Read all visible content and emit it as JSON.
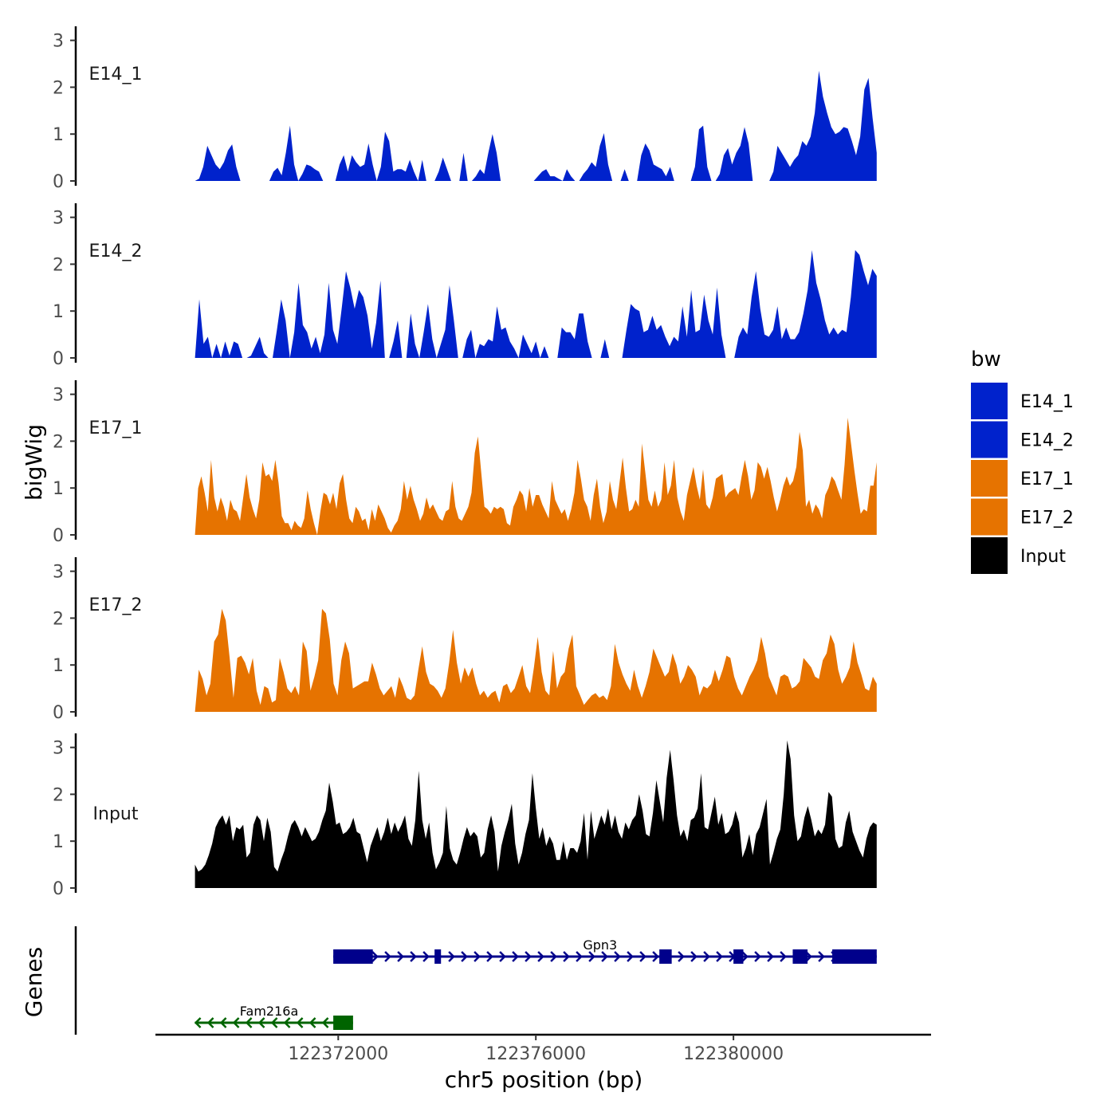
{
  "chart_data": {
    "type": "area",
    "chromosome": "chr5",
    "x_range": [
      122369100,
      122382900
    ],
    "xlim": [
      122368300,
      122384000
    ],
    "x_ticks": [
      122372000,
      122376000,
      122380000
    ],
    "x_tick_labels": [
      "122372000",
      "122376000",
      "122380000"
    ],
    "xlabel": "chr5 position (bp)",
    "ylabel": "bigWig",
    "genes_label": "Genes",
    "ylim": [
      0,
      3.3
    ],
    "y_ticks": [
      0,
      1,
      2,
      3
    ],
    "y_tick_labels": [
      "0",
      "1",
      "2",
      "3"
    ],
    "legend": {
      "title": "bw",
      "entries": [
        {
          "label": "E14_1",
          "color": "#0022cc"
        },
        {
          "label": "E14_2",
          "color": "#0022cc"
        },
        {
          "label": "E17_1",
          "color": "#e67300"
        },
        {
          "label": "E17_2",
          "color": "#e67300"
        },
        {
          "label": "Input",
          "color": "#000000"
        }
      ]
    },
    "tracks": [
      {
        "name": "E14_1",
        "color": "#0022cc",
        "values": [
          0,
          0.05,
          0.3,
          0.75,
          0.55,
          0.35,
          0.25,
          0.4,
          0.65,
          0.78,
          0.3,
          0,
          0,
          0,
          0,
          0,
          0,
          0,
          0,
          0.2,
          0.28,
          0.12,
          0.6,
          1.18,
          0.35,
          0,
          0.15,
          0.35,
          0.32,
          0.25,
          0.2,
          0,
          0,
          0,
          0,
          0.35,
          0.55,
          0.2,
          0.55,
          0.4,
          0.3,
          0.35,
          0.8,
          0.35,
          0,
          0.3,
          1.05,
          0.85,
          0.2,
          0.25,
          0.25,
          0.2,
          0.45,
          0.2,
          0,
          0.45,
          0,
          0,
          0,
          0.2,
          0.5,
          0.25,
          0,
          0,
          0,
          0.6,
          0,
          0,
          0.1,
          0.25,
          0.15,
          0.6,
          1.0,
          0.6,
          0,
          0,
          0,
          0,
          0,
          0,
          0,
          0,
          0,
          0.1,
          0.2,
          0.25,
          0.1,
          0.1,
          0.05,
          0,
          0.25,
          0.1,
          0,
          0,
          0.15,
          0.25,
          0.4,
          0.3,
          0.75,
          1.02,
          0.35,
          0,
          0,
          0,
          0.25,
          0,
          0,
          0,
          0.55,
          0.8,
          0.65,
          0.35,
          0.3,
          0.25,
          0.1,
          0.3,
          0,
          0,
          0,
          0,
          0,
          0.3,
          1.1,
          1.18,
          0.3,
          0,
          0,
          0.15,
          0.55,
          0.7,
          0.35,
          0.6,
          0.75,
          1.15,
          0.8,
          0,
          0,
          0,
          0,
          0,
          0.2,
          0.75,
          0.6,
          0.45,
          0.3,
          0.45,
          0.55,
          0.85,
          0.75,
          0.95,
          1.45,
          2.35,
          1.8,
          1.45,
          1.15,
          1.0,
          1.05,
          1.15,
          1.12,
          0.85,
          0.55,
          0.95,
          1.95,
          2.2,
          1.35,
          0.6
        ],
        "label_y": 2.3
      },
      {
        "name": "E14_2",
        "color": "#0022cc",
        "values": [
          0,
          1.25,
          0.3,
          0.45,
          0,
          0.3,
          0,
          0.35,
          0.05,
          0.35,
          0.3,
          0,
          0,
          0.05,
          0.25,
          0.45,
          0.1,
          0,
          0,
          0.6,
          1.25,
          0.8,
          0,
          0.55,
          1.6,
          0.7,
          0.55,
          0.2,
          0.45,
          0.1,
          0.5,
          1.6,
          0.6,
          0.3,
          1.05,
          1.85,
          1.5,
          1.05,
          1.45,
          1.3,
          0.9,
          0.2,
          0.75,
          1.65,
          0,
          0,
          0.35,
          0.8,
          0,
          0,
          0.95,
          0.3,
          0,
          0.55,
          1.15,
          0.4,
          0,
          0.3,
          0.6,
          1.55,
          0.8,
          0,
          0,
          0.4,
          0.6,
          0,
          0.3,
          0.25,
          0.4,
          0.35,
          1.1,
          0.6,
          0.65,
          0.35,
          0.2,
          0,
          0.5,
          0.3,
          0.1,
          0.35,
          0,
          0.25,
          0,
          0,
          0,
          0.65,
          0.55,
          0.55,
          0.4,
          0.95,
          0.95,
          0.35,
          0,
          0,
          0,
          0.4,
          0,
          0,
          0,
          0,
          0.6,
          1.15,
          1.05,
          1.0,
          0.55,
          0.6,
          0.9,
          0.6,
          0.7,
          0.45,
          0.25,
          0.45,
          0.35,
          1.1,
          0.45,
          1.45,
          0.55,
          0.6,
          1.35,
          0.8,
          0.5,
          1.5,
          0.5,
          0,
          0,
          0,
          0.45,
          0.65,
          0.5,
          1.3,
          1.85,
          1.05,
          0.5,
          0.45,
          0.6,
          1.1,
          0.4,
          0.65,
          0.4,
          0.4,
          0.55,
          0.95,
          1.45,
          2.3,
          1.6,
          1.25,
          0.8,
          0.5,
          0.65,
          0.5,
          0.6,
          0.55,
          1.3,
          2.3,
          2.2,
          1.85,
          1.55,
          1.9,
          1.75
        ],
        "label_y": 2.3
      },
      {
        "name": "E17_1",
        "color": "#e67300",
        "values": [
          0,
          1.0,
          1.25,
          0.9,
          0.5,
          1.6,
          0.8,
          0.5,
          0.8,
          0.6,
          0.3,
          0.75,
          0.55,
          0.5,
          0.3,
          0.8,
          1.3,
          0.8,
          0.55,
          0.35,
          0.75,
          1.55,
          1.25,
          1.3,
          1.15,
          1.6,
          1.1,
          0.4,
          0.25,
          0.25,
          0.1,
          0.3,
          0.2,
          0.15,
          0.35,
          0.95,
          0.55,
          0.25,
          0,
          0.5,
          0.9,
          0.85,
          0.65,
          0.9,
          0.55,
          1.1,
          1.3,
          0.75,
          0.35,
          0.25,
          0.6,
          0.5,
          0.3,
          0.35,
          0.1,
          0.55,
          0.3,
          0.65,
          0.5,
          0.35,
          0.15,
          0.05,
          0.2,
          0.3,
          0.55,
          1.15,
          0.75,
          1.05,
          0.75,
          0.55,
          0.3,
          0.45,
          0.8,
          0.55,
          0.65,
          0.5,
          0.35,
          0.3,
          0.5,
          0.55,
          1.15,
          0.6,
          0.35,
          0.3,
          0.45,
          0.6,
          0.9,
          1.75,
          2.1,
          1.35,
          0.6,
          0.55,
          0.45,
          0.6,
          0.55,
          0.6,
          0.55,
          0.25,
          0.2,
          0.6,
          0.75,
          0.95,
          0.85,
          0.5,
          1.0,
          0.6,
          0.85,
          0.85,
          0.65,
          0.5,
          0.35,
          1.15,
          0.75,
          0.6,
          0.45,
          0.55,
          0.3,
          0.55,
          0.9,
          1.6,
          1.2,
          0.75,
          0.6,
          0.3,
          0.85,
          1.2,
          0.6,
          0.25,
          0.5,
          1.15,
          0.75,
          0.55,
          1.1,
          1.65,
          1.0,
          0.5,
          0.55,
          0.75,
          0.6,
          1.95,
          1.35,
          0.75,
          0.6,
          0.95,
          0.6,
          0.75,
          1.55,
          0.85,
          1.05,
          1.6,
          0.8,
          0.5,
          0.3,
          0.85,
          1.15,
          1.45,
          1.05,
          0.75,
          1.4,
          0.65,
          0.55,
          0.8,
          1.2,
          1.25,
          1.3,
          0.8,
          0.9,
          0.95,
          1.0,
          0.85,
          1.25,
          1.6,
          1.25,
          0.75,
          0.95,
          1.55,
          1.45,
          1.2,
          1.45,
          1.15,
          0.8,
          0.5,
          0.75,
          1.05,
          1.25,
          1.05,
          1.15,
          1.45,
          2.2,
          1.8,
          0.6,
          0.75,
          0.45,
          0.65,
          0.55,
          0.35,
          0.85,
          1.0,
          1.25,
          1.15,
          0.95,
          0.75,
          1.5,
          2.5,
          1.95,
          1.4,
          0.9,
          0.45,
          0.55,
          0.5,
          1.05,
          1.05,
          1.55
        ],
        "label_y": 2.3
      },
      {
        "name": "E17_2",
        "color": "#e67300",
        "values": [
          0,
          0.9,
          0.7,
          0.35,
          0.6,
          1.5,
          1.65,
          2.2,
          1.95,
          1.15,
          0.3,
          1.15,
          1.2,
          1.05,
          0.8,
          1.15,
          0.45,
          0.15,
          0.55,
          0.5,
          0.2,
          0.25,
          1.15,
          0.85,
          0.5,
          0.4,
          0.55,
          0.35,
          1.5,
          1.3,
          0.45,
          0.75,
          1.1,
          2.2,
          2.1,
          1.55,
          0.6,
          0.35,
          1.1,
          1.5,
          1.25,
          0.5,
          0.55,
          0.6,
          0.65,
          0.65,
          1.05,
          0.8,
          0.5,
          0.35,
          0.45,
          0.55,
          0.3,
          0.75,
          0.55,
          0.3,
          0.25,
          0.35,
          0.9,
          1.4,
          0.85,
          0.6,
          0.55,
          0.45,
          0.3,
          0.5,
          1.05,
          1.75,
          1.05,
          0.6,
          0.95,
          0.75,
          0.95,
          0.6,
          0.35,
          0.45,
          0.3,
          0.4,
          0.45,
          0.2,
          0.55,
          0.6,
          0.4,
          0.5,
          0.75,
          1.0,
          0.55,
          0.4,
          0.95,
          1.6,
          0.85,
          0.45,
          0.35,
          1.3,
          0.5,
          0.75,
          0.85,
          1.35,
          1.65,
          0.55,
          0.35,
          0.15,
          0.25,
          0.35,
          0.4,
          0.3,
          0.35,
          0.25,
          0.55,
          1.45,
          1.05,
          0.8,
          0.6,
          0.45,
          0.9,
          0.55,
          0.3,
          0.55,
          0.85,
          1.35,
          1.15,
          0.95,
          0.75,
          0.85,
          1.25,
          1.0,
          0.6,
          0.75,
          1.0,
          0.9,
          0.75,
          0.35,
          0.55,
          0.5,
          0.6,
          0.9,
          0.65,
          0.9,
          1.2,
          1.15,
          0.75,
          0.5,
          0.35,
          0.55,
          0.75,
          0.9,
          1.1,
          1.6,
          1.25,
          0.75,
          0.55,
          0.35,
          0.75,
          0.8,
          0.75,
          0.5,
          0.55,
          0.65,
          1.15,
          1.05,
          0.95,
          0.75,
          0.7,
          1.1,
          1.25,
          1.65,
          1.45,
          0.9,
          0.6,
          0.75,
          0.95,
          1.5,
          1.05,
          0.8,
          0.5,
          0.45,
          0.75,
          0.6
        ],
        "label_y": 2.3
      },
      {
        "name": "Input",
        "color": "#000000",
        "values": [
          0.5,
          0.35,
          0.4,
          0.5,
          0.7,
          0.95,
          1.3,
          1.45,
          1.55,
          1.35,
          1.55,
          1.0,
          1.3,
          1.25,
          1.35,
          0.65,
          0.75,
          1.35,
          1.55,
          1.45,
          1.0,
          1.5,
          1.2,
          0.45,
          0.35,
          0.6,
          0.8,
          1.1,
          1.35,
          1.45,
          1.3,
          1.1,
          1.3,
          1.15,
          1.0,
          1.05,
          1.2,
          1.45,
          1.65,
          2.25,
          1.85,
          1.35,
          1.4,
          1.15,
          1.2,
          1.3,
          1.5,
          1.2,
          1.15,
          0.85,
          0.55,
          0.9,
          1.1,
          1.3,
          1.0,
          1.2,
          1.5,
          1.15,
          1.4,
          1.2,
          1.35,
          1.55,
          1.05,
          0.9,
          1.45,
          2.5,
          1.45,
          1.05,
          1.4,
          0.75,
          0.4,
          0.55,
          0.75,
          1.75,
          0.85,
          0.6,
          0.5,
          0.75,
          1.05,
          1.3,
          1.1,
          1.2,
          1.1,
          0.65,
          0.75,
          1.25,
          1.55,
          1.2,
          0.35,
          0.9,
          1.2,
          1.45,
          1.8,
          0.95,
          0.5,
          0.75,
          1.15,
          1.45,
          2.45,
          1.7,
          1.05,
          1.3,
          0.9,
          1.1,
          0.95,
          0.6,
          0.6,
          1.0,
          0.6,
          0.85,
          0.85,
          0.75,
          1.0,
          1.6,
          0.6,
          1.65,
          1.05,
          1.3,
          1.55,
          1.35,
          1.7,
          1.25,
          1.55,
          1.2,
          1.05,
          1.4,
          1.25,
          1.45,
          1.55,
          2.0,
          1.65,
          1.15,
          1.1,
          1.6,
          2.3,
          1.85,
          1.4,
          2.35,
          2.95,
          2.3,
          1.55,
          1.1,
          1.25,
          1.0,
          1.45,
          1.5,
          1.7,
          2.45,
          1.3,
          1.25,
          1.6,
          1.95,
          1.35,
          1.6,
          1.15,
          1.2,
          1.35,
          1.65,
          1.4,
          0.65,
          0.85,
          1.15,
          0.7,
          1.15,
          1.3,
          1.6,
          1.9,
          0.5,
          0.75,
          1.05,
          1.25,
          2.0,
          3.15,
          2.75,
          1.55,
          1.0,
          1.1,
          1.5,
          1.75,
          1.45,
          1.1,
          1.25,
          1.15,
          1.35,
          2.05,
          1.95,
          1.05,
          0.85,
          0.9,
          1.4,
          1.65,
          1.2,
          1.0,
          0.8,
          0.65,
          1.05,
          1.3,
          1.4,
          1.35
        ],
        "label_y": 1.6
      }
    ],
    "genes": [
      {
        "name": "Gpn3",
        "strand": "+",
        "color": "#00008b",
        "start": 122371900,
        "end": 122382900,
        "exons": [
          [
            122371900,
            122372700
          ],
          [
            122373950,
            122374080
          ],
          [
            122378500,
            122378750
          ],
          [
            122380000,
            122380200
          ],
          [
            122381200,
            122381500
          ],
          [
            122382000,
            122382900
          ]
        ],
        "label_x": 122377300
      },
      {
        "name": "Fam216a",
        "strand": "-",
        "color": "#006400",
        "start": 122369100,
        "end": 122372300,
        "exons": [
          [
            122371900,
            122372300
          ]
        ],
        "label_x": 122370600
      }
    ]
  }
}
